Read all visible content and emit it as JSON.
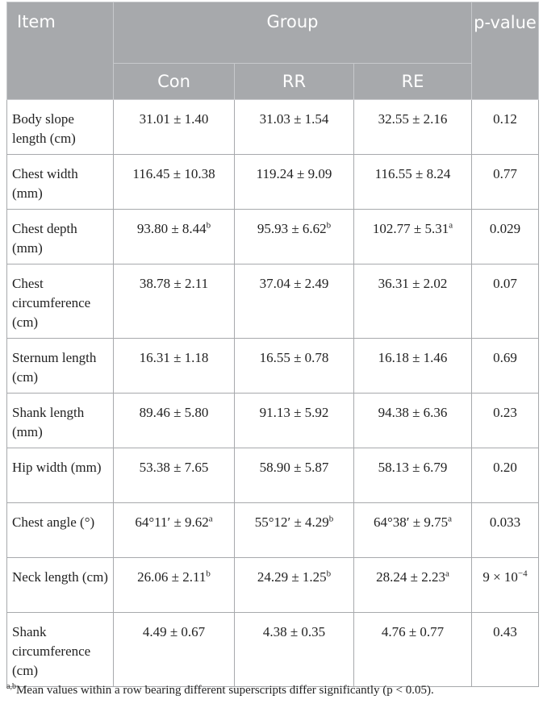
{
  "header": {
    "item": "Item",
    "group": "Group",
    "p_value": "p-value",
    "groups": [
      "Con",
      "RR",
      "RE"
    ]
  },
  "rows": [
    {
      "label": "Body slope length (cm)",
      "con": "31.01 ± 1.40",
      "con_sup": "",
      "rr": "31.03 ± 1.54",
      "rr_sup": "",
      "re": "32.55 ± 2.16",
      "re_sup": "",
      "p": "0.12",
      "p_sup": ""
    },
    {
      "label": "Chest width (mm)",
      "con": "116.45 ± 10.38",
      "con_sup": "",
      "rr": "119.24 ± 9.09",
      "rr_sup": "",
      "re": "116.55 ± 8.24",
      "re_sup": "",
      "p": "0.77",
      "p_sup": ""
    },
    {
      "label": "Chest depth (mm)",
      "con": "93.80 ± 8.44",
      "con_sup": "b",
      "rr": "95.93 ± 6.62",
      "rr_sup": "b",
      "re": "102.77 ± 5.31",
      "re_sup": "a",
      "p": "0.029",
      "p_sup": ""
    },
    {
      "label": "Chest circumference (cm)",
      "con": "38.78 ± 2.11",
      "con_sup": "",
      "rr": "37.04 ± 2.49",
      "rr_sup": "",
      "re": "36.31 ± 2.02",
      "re_sup": "",
      "p": "0.07",
      "p_sup": ""
    },
    {
      "label": "Sternum length (cm)",
      "con": "16.31 ± 1.18",
      "con_sup": "",
      "rr": "16.55 ± 0.78",
      "rr_sup": "",
      "re": "16.18 ± 1.46",
      "re_sup": "",
      "p": "0.69",
      "p_sup": ""
    },
    {
      "label": "Shank length (mm)",
      "con": "89.46 ± 5.80",
      "con_sup": "",
      "rr": "91.13 ± 5.92",
      "rr_sup": "",
      "re": "94.38 ± 6.36",
      "re_sup": "",
      "p": "0.23",
      "p_sup": ""
    },
    {
      "label": "Hip width (mm)",
      "con": "53.38 ± 7.65",
      "con_sup": "",
      "rr": "58.90 ± 5.87",
      "rr_sup": "",
      "re": "58.13 ± 6.79",
      "re_sup": "",
      "p": "0.20",
      "p_sup": ""
    },
    {
      "label": "Chest angle (°)",
      "con": "64°11′ ± 9.62",
      "con_sup": "a",
      "rr": "55°12′ ± 4.29",
      "rr_sup": "b",
      "re": "64°38′ ± 9.75",
      "re_sup": "a",
      "p": "0.033",
      "p_sup": ""
    },
    {
      "label": "Neck length (cm)",
      "con": "26.06 ± 2.11",
      "con_sup": "b",
      "rr": "24.29 ± 1.25",
      "rr_sup": "b",
      "re": "28.24 ± 2.23",
      "re_sup": "a",
      "p": "9 × 10",
      "p_sup": "−4"
    },
    {
      "label": "Shank circumference (cm)",
      "con": "4.49 ± 0.67",
      "con_sup": "",
      "rr": "4.38 ± 0.35",
      "rr_sup": "",
      "re": "4.76 ± 0.77",
      "re_sup": "",
      "p": "0.43",
      "p_sup": ""
    }
  ],
  "footnote": {
    "marker": "a,b",
    "text": "Mean values within a row bearing different superscripts differ significantly (p < 0.05)."
  }
}
